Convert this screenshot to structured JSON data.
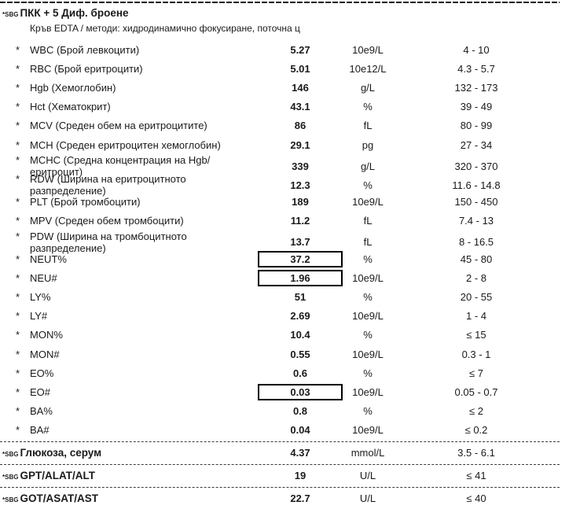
{
  "header": {
    "prefix": "*SBG",
    "title": "ПКК + 5 Диф. броене",
    "subtitle": "Кръв EDTA / методи: хидродинамично фокусиране, поточна ц"
  },
  "colors": {
    "text": "#1a1a1a",
    "abnormal_box_border": "#000000"
  },
  "cbc_rows": [
    {
      "marker": "*",
      "label": "WBC (Брой левкоцити)",
      "value": "5.27",
      "unit": "10e9/L",
      "range": "4 - 10",
      "boxed": false
    },
    {
      "marker": "*",
      "label": "RBC (Брой еритроцити)",
      "value": "5.01",
      "unit": "10e12/L",
      "range": "4.3 - 5.7",
      "boxed": false
    },
    {
      "marker": "*",
      "label": "Hgb (Хемоглобин)",
      "value": "146",
      "unit": "g/L",
      "range": "132 - 173",
      "boxed": false
    },
    {
      "marker": "*",
      "label": "Hct (Хематокрит)",
      "value": "43.1",
      "unit": "%",
      "range": "39 - 49",
      "boxed": false
    },
    {
      "marker": "*",
      "label": "MCV (Среден обем на еритроцитите)",
      "value": "86",
      "unit": "fL",
      "range": "80 - 99",
      "boxed": false
    },
    {
      "marker": "*",
      "label": "MCH (Среден еритроцитен хемоглобин)",
      "value": "29.1",
      "unit": "pg",
      "range": "27 - 34",
      "boxed": false
    },
    {
      "marker": "*",
      "label": "MCHC (Средна концентрация на Hgb/еритроцит)",
      "value": "339",
      "unit": "g/L",
      "range": "320 - 370",
      "boxed": false
    },
    {
      "marker": "*",
      "label": "RDW (Ширина на еритроцитното разпределение)",
      "value": "12.3",
      "unit": "%",
      "range": "11.6 - 14.8",
      "boxed": false
    },
    {
      "marker": "*",
      "label": "PLT (Брой тромбоцити)",
      "value": "189",
      "unit": "10e9/L",
      "range": "150 - 450",
      "boxed": false
    },
    {
      "marker": "*",
      "label": "MPV (Среден обем тромбоцити)",
      "value": "11.2",
      "unit": "fL",
      "range": "7.4 - 13",
      "boxed": false
    },
    {
      "marker": "*",
      "label": "PDW (Ширина на тромбоцитното разпределение)",
      "value": "13.7",
      "unit": "fL",
      "range": "8 - 16.5",
      "boxed": false
    },
    {
      "marker": "*",
      "label": "NEUT%",
      "value": "37.2",
      "unit": "%",
      "range": "45 - 80",
      "boxed": true
    },
    {
      "marker": "*",
      "label": "NEU#",
      "value": "1.96",
      "unit": "10e9/L",
      "range": "2 - 8",
      "boxed": true
    },
    {
      "marker": "*",
      "label": "LY%",
      "value": "51",
      "unit": "%",
      "range": "20 - 55",
      "boxed": false
    },
    {
      "marker": "*",
      "label": "LY#",
      "value": "2.69",
      "unit": "10e9/L",
      "range": "1 - 4",
      "boxed": false
    },
    {
      "marker": "*",
      "label": "MON%",
      "value": "10.4",
      "unit": "%",
      "range": "≤ 15",
      "boxed": false
    },
    {
      "marker": "*",
      "label": "MON#",
      "value": "0.55",
      "unit": "10e9/L",
      "range": "0.3 - 1",
      "boxed": false
    },
    {
      "marker": "*",
      "label": "EO%",
      "value": "0.6",
      "unit": "%",
      "range": "≤ 7",
      "boxed": false
    },
    {
      "marker": "*",
      "label": "EO#",
      "value": "0.03",
      "unit": "10e9/L",
      "range": "0.05 - 0.7",
      "boxed": true
    },
    {
      "marker": "*",
      "label": "BA%",
      "value": "0.8",
      "unit": "%",
      "range": "≤ 2",
      "boxed": false
    },
    {
      "marker": "*",
      "label": "BA#",
      "value": "0.04",
      "unit": "10e9/L",
      "range": "≤ 0.2",
      "boxed": false
    }
  ],
  "chem_rows": [
    {
      "prefix": "*SBG",
      "label": "Глюкоза, серум",
      "value": "4.37",
      "unit": "mmol/L",
      "range": "3.5 - 6.1"
    },
    {
      "prefix": "*SBG",
      "label": "GPT/ALAT/ALT",
      "value": "19",
      "unit": "U/L",
      "range": "≤ 41"
    },
    {
      "prefix": "*SBG",
      "label": "GOT/ASAT/AST",
      "value": "22.7",
      "unit": "U/L",
      "range": "≤ 40"
    }
  ]
}
